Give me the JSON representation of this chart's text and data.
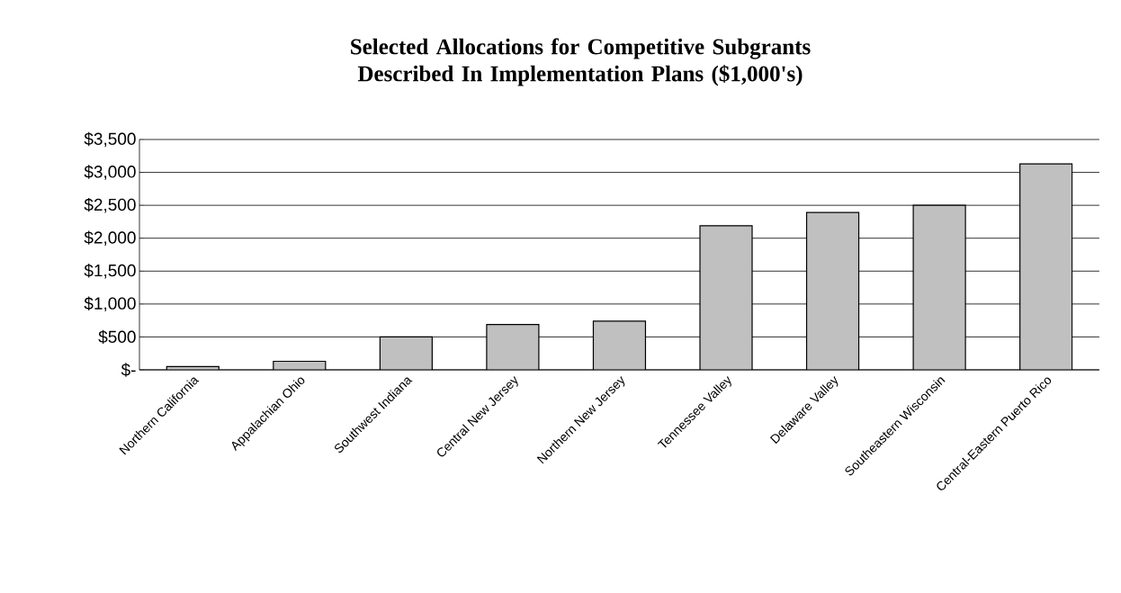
{
  "chart_data": {
    "type": "bar",
    "title": "Selected Allocations for Competitive Subgrants Described In Implementation Plans ($1,000's)",
    "categories": [
      "Northern California",
      "Appalachian Ohio",
      "Southwest Indiana",
      "Central New Jersey",
      "Northern New Jersey",
      "Tennessee Valley",
      "Delaware Valley",
      "Southeastern Wisconsin",
      "Central-Eastern Puerto Rico"
    ],
    "values": [
      50,
      130,
      500,
      690,
      740,
      2190,
      2390,
      2500,
      3130
    ],
    "color": "#c0c0c0",
    "ylim": [
      0,
      3500
    ],
    "yticks": [
      {
        "value": 0,
        "label": "$-"
      },
      {
        "value": 500,
        "label": "$500"
      },
      {
        "value": 1000,
        "label": "$1,000"
      },
      {
        "value": 1500,
        "label": "$1,500"
      },
      {
        "value": 2000,
        "label": "$2,000"
      },
      {
        "value": 2500,
        "label": "$2,500"
      },
      {
        "value": 3000,
        "label": "$3,000"
      },
      {
        "value": 3500,
        "label": "$3,500"
      }
    ],
    "grid": "y"
  }
}
